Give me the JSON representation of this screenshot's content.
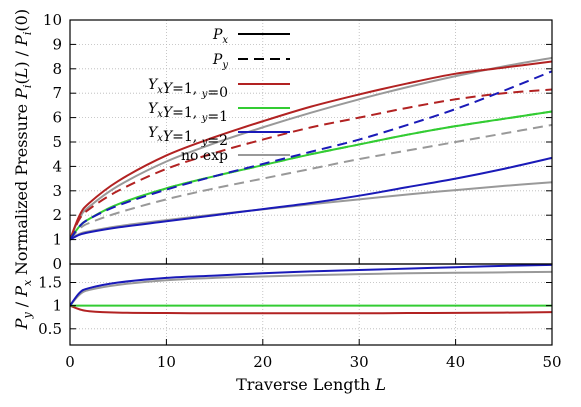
{
  "chart_data": [
    {
      "type": "line",
      "xlabel": "Traverse Length L",
      "ylabel": "Normalized Pressure P_i(L) / P_i(0)",
      "xlim": [
        0,
        50
      ],
      "ylim": [
        0,
        10
      ],
      "xticks": [
        "0",
        "10",
        "20",
        "30",
        "40",
        "50"
      ],
      "yticks": [
        "0",
        "1",
        "2",
        "3",
        "4",
        "5",
        "6",
        "7",
        "8",
        "9",
        "10"
      ],
      "grid": true,
      "legend_placement": "top-left",
      "legend": [
        {
          "label": "P_x",
          "style": "solid",
          "color": "#000000"
        },
        {
          "label": "P_y",
          "style": "dashed",
          "color": "#000000"
        },
        {
          "label": "Y_x=1, Y_y=0",
          "style": "solid",
          "color": "#b22222"
        },
        {
          "label": "Y_x=1, Y_y=1",
          "style": "solid",
          "color": "#33cc33"
        },
        {
          "label": "Y_x=1, Y_y=2",
          "style": "solid",
          "color": "#1a1ab8"
        },
        {
          "label": "no exp",
          "style": "solid",
          "color": "#999999"
        }
      ],
      "series": [
        {
          "legend_group": "no exp",
          "component": "P_x",
          "style": "solid",
          "color": "#999999",
          "x": [
            0,
            1,
            2,
            5,
            10,
            15,
            20,
            25,
            30,
            35,
            40,
            45,
            50
          ],
          "y": [
            1.0,
            1.9,
            2.35,
            3.2,
            4.2,
            4.95,
            5.6,
            6.2,
            6.75,
            7.25,
            7.7,
            8.1,
            8.45
          ]
        },
        {
          "legend_group": "no exp",
          "component": "P_y",
          "style": "dashed",
          "color": "#999999",
          "x": [
            0,
            1,
            2,
            5,
            10,
            15,
            20,
            25,
            30,
            35,
            40,
            45,
            50
          ],
          "y": [
            1.0,
            1.45,
            1.68,
            2.1,
            2.65,
            3.1,
            3.5,
            3.9,
            4.3,
            4.65,
            5.0,
            5.35,
            5.7
          ]
        },
        {
          "legend_group": "no exp",
          "component": "P_x",
          "style": "solid",
          "color": "#999999",
          "x": [
            0,
            1,
            2,
            5,
            10,
            15,
            20,
            25,
            30,
            35,
            40,
            45,
            50
          ],
          "y": [
            1.0,
            1.24,
            1.34,
            1.55,
            1.8,
            2.03,
            2.24,
            2.45,
            2.65,
            2.85,
            3.03,
            3.2,
            3.35
          ]
        },
        {
          "legend_group": "Y_x=1, Y_y=0",
          "component": "P_x",
          "style": "solid",
          "color": "#b22222",
          "x": [
            0,
            1,
            2,
            5,
            10,
            15,
            20,
            25,
            30,
            35,
            40,
            45,
            50
          ],
          "y": [
            1.0,
            2.0,
            2.5,
            3.4,
            4.45,
            5.2,
            5.85,
            6.45,
            6.95,
            7.4,
            7.8,
            8.05,
            8.3
          ]
        },
        {
          "legend_group": "Y_x=1, Y_y=0",
          "component": "P_y",
          "style": "dashed",
          "color": "#b22222",
          "x": [
            0,
            1,
            2,
            5,
            10,
            15,
            20,
            25,
            30,
            35,
            40,
            45,
            50
          ],
          "y": [
            1.0,
            1.85,
            2.25,
            3.0,
            3.9,
            4.55,
            5.1,
            5.6,
            6.0,
            6.4,
            6.75,
            7.0,
            7.15
          ]
        },
        {
          "legend_group": "Y_x=1, Y_y=1",
          "component": "P_x",
          "style": "solid",
          "color": "#33cc33",
          "x": [
            0,
            1,
            2,
            5,
            10,
            15,
            20,
            25,
            30,
            35,
            40,
            45,
            50
          ],
          "y": [
            1.0,
            1.55,
            1.85,
            2.45,
            3.1,
            3.6,
            4.05,
            4.5,
            4.9,
            5.3,
            5.65,
            5.95,
            6.25
          ]
        },
        {
          "legend_group": "Y_x=1, Y_y=1",
          "component": "P_y",
          "style": "dashed",
          "color": "#33cc33",
          "x": [
            0,
            1,
            2,
            5,
            10,
            15,
            20,
            25,
            30,
            35,
            40,
            45,
            50
          ],
          "y": [
            1.0,
            1.55,
            1.85,
            2.45,
            3.1,
            3.6,
            4.05,
            4.5,
            4.9,
            5.3,
            5.65,
            5.95,
            6.25
          ]
        },
        {
          "legend_group": "Y_x=1, Y_y=2",
          "component": "P_x",
          "style": "solid",
          "color": "#1a1ab8",
          "x": [
            0,
            1,
            2,
            5,
            10,
            15,
            20,
            25,
            30,
            35,
            40,
            45,
            50
          ],
          "y": [
            1.0,
            1.2,
            1.3,
            1.5,
            1.75,
            2.0,
            2.25,
            2.5,
            2.8,
            3.15,
            3.5,
            3.9,
            4.35
          ]
        },
        {
          "legend_group": "Y_x=1, Y_y=2",
          "component": "P_y",
          "style": "dashed",
          "color": "#1a1ab8",
          "x": [
            0,
            1,
            2,
            5,
            10,
            15,
            20,
            25,
            30,
            35,
            40,
            45,
            50
          ],
          "y": [
            1.0,
            1.55,
            1.85,
            2.4,
            3.05,
            3.6,
            4.1,
            4.6,
            5.1,
            5.7,
            6.35,
            7.1,
            7.9
          ]
        }
      ]
    },
    {
      "type": "line",
      "xlabel": "Traverse Length L",
      "ylabel": "P_y / P_x",
      "xlim": [
        0,
        50
      ],
      "ylim": [
        0.15,
        1.9
      ],
      "xticks": [
        "0",
        "10",
        "20",
        "30",
        "40",
        "50"
      ],
      "yticks": [
        "0.5",
        "1",
        "1.5"
      ],
      "grid": true,
      "series": [
        {
          "legend_group": "no exp",
          "color": "#999999",
          "x": [
            0,
            1,
            2,
            5,
            10,
            15,
            20,
            25,
            30,
            35,
            40,
            45,
            50
          ],
          "y": [
            1.0,
            1.24,
            1.34,
            1.45,
            1.55,
            1.6,
            1.63,
            1.66,
            1.68,
            1.7,
            1.71,
            1.72,
            1.73
          ]
        },
        {
          "legend_group": "Y_x=1, Y_y=0",
          "color": "#b22222",
          "x": [
            0,
            1,
            2,
            5,
            10,
            15,
            20,
            25,
            30,
            35,
            40,
            45,
            50
          ],
          "y": [
            1.0,
            0.92,
            0.88,
            0.85,
            0.84,
            0.835,
            0.835,
            0.835,
            0.835,
            0.84,
            0.845,
            0.85,
            0.86
          ]
        },
        {
          "legend_group": "Y_x=1, Y_y=1",
          "color": "#33cc33",
          "x": [
            0,
            10,
            20,
            30,
            40,
            50
          ],
          "y": [
            1.0,
            1.0,
            1.0,
            1.0,
            1.0,
            1.0
          ]
        },
        {
          "legend_group": "Y_x=1, Y_y=2",
          "color": "#1a1ab8",
          "x": [
            0,
            1,
            2,
            5,
            10,
            15,
            20,
            25,
            30,
            35,
            40,
            45,
            50
          ],
          "y": [
            1.0,
            1.28,
            1.38,
            1.5,
            1.6,
            1.65,
            1.7,
            1.74,
            1.77,
            1.8,
            1.83,
            1.86,
            1.88
          ]
        }
      ]
    }
  ]
}
